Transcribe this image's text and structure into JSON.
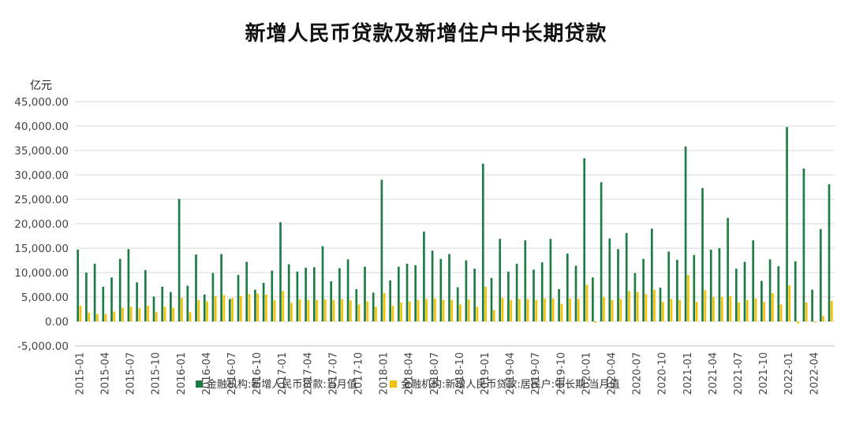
{
  "chart_data": {
    "type": "bar",
    "title": "新增人民币贷款及新增住户中长期贷款",
    "y_unit": "亿元",
    "ylim": [
      -5000,
      45000
    ],
    "y_ticks": [
      "45,000.00",
      "40,000.00",
      "35,000.00",
      "30,000.00",
      "25,000.00",
      "20,000.00",
      "15,000.00",
      "10,000.00",
      "5,000.00",
      "0.00",
      "-5,000.00"
    ],
    "y_tick_values": [
      45000,
      40000,
      35000,
      30000,
      25000,
      20000,
      15000,
      10000,
      5000,
      0,
      -5000
    ],
    "grid": true,
    "legend_position": "bottom",
    "start_month": "2015-01",
    "x_tick_labels": [
      "2015-01",
      "2015-04",
      "2015-07",
      "2015-10",
      "2016-01",
      "2016-04",
      "2016-07",
      "2016-10",
      "2017-01",
      "2017-04",
      "2017-07",
      "2017-10",
      "2018-01",
      "2018-04",
      "2018-07",
      "2018-10",
      "2019-01",
      "2019-04",
      "2019-07",
      "2019-10",
      "2020-01",
      "2020-04",
      "2020-07",
      "2020-10",
      "2021-01",
      "2021-04",
      "2021-07",
      "2021-10",
      "2022-01",
      "2022-04"
    ],
    "series": [
      {
        "name": "金融机构:新增人民币贷款:当月值",
        "color": "#1e7b45",
        "values": [
          14700,
          10000,
          11800,
          7100,
          9000,
          12800,
          14800,
          8000,
          10500,
          5100,
          7100,
          6000,
          25100,
          7300,
          13700,
          5500,
          9900,
          13800,
          4600,
          9500,
          12200,
          6500,
          7900,
          10400,
          20300,
          11700,
          10200,
          11000,
          11100,
          15400,
          8200,
          10900,
          12700,
          6600,
          11200,
          5900,
          29000,
          8400,
          11200,
          11800,
          11500,
          18400,
          14500,
          12800,
          13800,
          7000,
          12500,
          10800,
          32300,
          8900,
          16900,
          10200,
          11800,
          16600,
          10600,
          12100,
          16900,
          6600,
          13900,
          11400,
          33400,
          9000,
          28500,
          17000,
          14800,
          18100,
          9900,
          12800,
          19000,
          6900,
          14300,
          12600,
          35800,
          13600,
          27300,
          14700,
          15000,
          21200,
          10800,
          12200,
          16600,
          8300,
          12700,
          11300,
          39800,
          12300,
          31300,
          6500,
          18900,
          28100
        ]
      },
      {
        "name": "金融机构:新增人民币贷款:居民户:中长期:当月值",
        "color": "#f2c200",
        "values": [
          3200,
          1800,
          1500,
          1500,
          2000,
          2800,
          3000,
          2700,
          3200,
          1900,
          3000,
          2800,
          4800,
          1900,
          4400,
          4100,
          5200,
          5400,
          4800,
          5200,
          5600,
          5700,
          5500,
          4300,
          6200,
          3800,
          4500,
          4400,
          4400,
          4500,
          4400,
          4600,
          4300,
          3500,
          4100,
          3000,
          5800,
          3200,
          3900,
          4100,
          4400,
          4600,
          4700,
          4400,
          4400,
          3500,
          4500,
          3000,
          7100,
          2300,
          4800,
          4400,
          4600,
          4600,
          4400,
          4700,
          4700,
          3600,
          4700,
          4600,
          7500,
          -300,
          5000,
          4400,
          4600,
          6200,
          6000,
          5600,
          6500,
          4000,
          4600,
          4400,
          9500,
          4000,
          6400,
          5000,
          5000,
          5200,
          3900,
          4400,
          4700,
          4000,
          5800,
          3500,
          7400,
          -400,
          3900,
          -200,
          1100,
          4200
        ]
      }
    ]
  }
}
